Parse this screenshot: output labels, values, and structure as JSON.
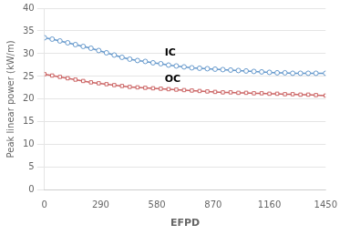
{
  "chart_data": {
    "type": "line",
    "x": [
      0,
      40,
      80,
      120,
      160,
      200,
      240,
      280,
      320,
      360,
      400,
      440,
      480,
      520,
      560,
      600,
      640,
      680,
      720,
      760,
      800,
      840,
      880,
      920,
      960,
      1000,
      1040,
      1080,
      1120,
      1160,
      1200,
      1240,
      1280,
      1320,
      1360,
      1400,
      1450
    ],
    "series": [
      {
        "color": "#6699CC",
        "marker": "circle",
        "values": [
          33.5,
          33.2,
          32.8,
          32.4,
          32.0,
          31.6,
          31.2,
          30.7,
          30.2,
          29.7,
          29.2,
          28.8,
          28.5,
          28.3,
          28.0,
          27.8,
          27.5,
          27.3,
          27.1,
          26.9,
          26.8,
          26.7,
          26.6,
          26.5,
          26.4,
          26.3,
          26.2,
          26.1,
          26.0,
          25.9,
          25.8,
          25.8,
          25.7,
          25.7,
          25.7,
          25.7,
          25.7
        ]
      },
      {
        "color": "#CC6666",
        "marker": "square",
        "values": [
          25.5,
          25.2,
          24.9,
          24.6,
          24.3,
          24.0,
          23.7,
          23.5,
          23.3,
          23.1,
          22.9,
          22.7,
          22.6,
          22.5,
          22.4,
          22.3,
          22.2,
          22.1,
          22.0,
          21.9,
          21.8,
          21.7,
          21.6,
          21.5,
          21.5,
          21.4,
          21.4,
          21.3,
          21.3,
          21.2,
          21.2,
          21.1,
          21.1,
          21.0,
          21.0,
          20.9,
          20.8
        ]
      }
    ],
    "annotations": [
      {
        "text": "IC",
        "x": 620,
        "y": 29.0
      },
      {
        "text": "OC",
        "x": 620,
        "y": 23.3
      }
    ],
    "xlabel": "EFPD",
    "ylabel": "Peak linear power (kW/m)",
    "xlim": [
      0,
      1450
    ],
    "ylim": [
      0,
      40
    ],
    "xticks": [
      0,
      290,
      580,
      870,
      1160,
      1450
    ],
    "yticks": [
      0,
      5,
      10,
      15,
      20,
      25,
      30,
      35,
      40
    ],
    "grid": "y"
  }
}
